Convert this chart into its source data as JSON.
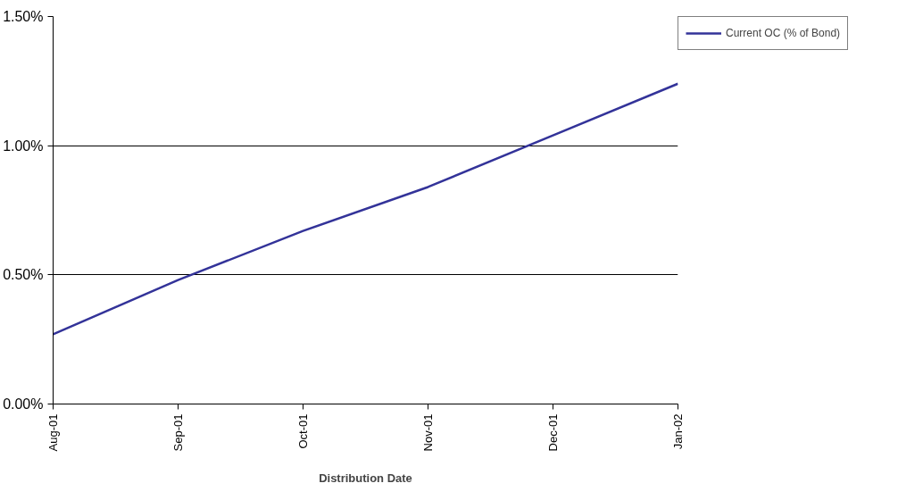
{
  "chart_data": {
    "type": "line",
    "xlabel": "Distribution Date",
    "categories": [
      "Aug-01",
      "Sep-01",
      "Oct-01",
      "Nov-01",
      "Dec-01",
      "Jan-02"
    ],
    "series": [
      {
        "name": "Current OC (% of Bond)",
        "color": "#333399",
        "values": [
          0.27,
          0.48,
          0.67,
          0.84,
          1.04,
          1.24
        ]
      }
    ],
    "ylim": [
      0,
      1.5
    ],
    "yticks": [
      {
        "value": 0,
        "label": "0.00%"
      },
      {
        "value": 0.5,
        "label": "0.50%"
      },
      {
        "value": 1.0,
        "label": "1.00%"
      },
      {
        "value": 1.5,
        "label": "1.50%"
      }
    ],
    "grid": "y",
    "legend": "top right",
    "marker": "none",
    "line_style": "solid"
  }
}
